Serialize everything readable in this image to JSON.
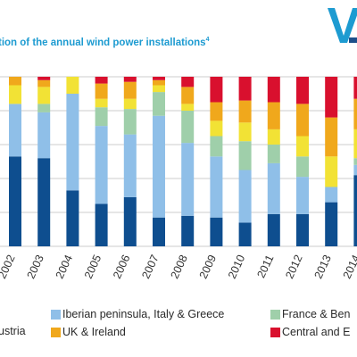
{
  "title": "tion of the annual wind power installations",
  "title_note": "4",
  "colors": {
    "northern_europe": "#0e4e8f",
    "iberian": "#8fbfe8",
    "france_benelux": "#9fcfaa",
    "uk_ireland": "#f0a81c",
    "central_eastern": "#d9102e",
    "yellow": "#f2e235",
    "logo": "#1d9bd1",
    "grid": "#cccccc"
  },
  "legend": [
    {
      "label": "ustria",
      "color_key": "northern_europe"
    },
    {
      "label": "Iberian peninsula, Italy & Greece",
      "color_key": "iberian"
    },
    {
      "label": "France & Ben",
      "color_key": "france_benelux"
    },
    {
      "label": "UK & Ireland",
      "color_key": "uk_ireland"
    },
    {
      "label": "Central and E",
      "color_key": "central_eastern"
    }
  ],
  "chart_data": {
    "type": "bar",
    "stacked": true,
    "normalized": true,
    "ylim": [
      0,
      100
    ],
    "categories": [
      "2002",
      "2003",
      "2004",
      "2005",
      "2006",
      "2007",
      "2008",
      "2009",
      "2010",
      "2011",
      "2012",
      "2013",
      "2014"
    ],
    "series": [
      {
        "color_key": "northern_europe",
        "values": [
          53,
          52,
          33,
          25,
          29,
          17,
          18,
          17,
          14,
          19,
          19,
          26,
          42
        ]
      },
      {
        "color_key": "iberian",
        "values": [
          31,
          27,
          57,
          46,
          37,
          60,
          43,
          36,
          31,
          30,
          22,
          9,
          6
        ]
      },
      {
        "color_key": "france_benelux",
        "values": [
          0,
          5,
          0,
          11,
          15,
          14,
          19,
          12,
          17,
          11,
          12,
          0,
          4
        ]
      },
      {
        "color_key": "yellow",
        "values": [
          11,
          10,
          10,
          5,
          6,
          4,
          4,
          9,
          11,
          9,
          12,
          18,
          17
        ]
      },
      {
        "color_key": "uk_ireland",
        "values": [
          5,
          4,
          0,
          9,
          10,
          3,
          10,
          11,
          13,
          16,
          19,
          23,
          18
        ]
      },
      {
        "color_key": "central_eastern",
        "values": [
          0,
          2,
          0,
          4,
          3,
          2,
          6,
          15,
          14,
          15,
          16,
          24,
          13
        ]
      }
    ],
    "gridlines": true
  }
}
